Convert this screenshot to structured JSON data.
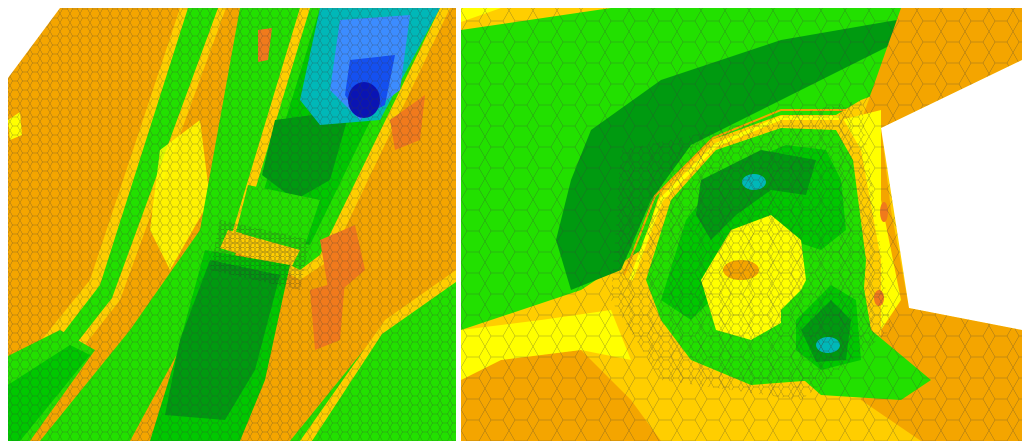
{
  "figure": {
    "colors": {
      "background": "#ffffff",
      "band_orange": "#F4A500",
      "band_dark_orange": "#F07A1C",
      "band_yellow_orange": "#FFCE00",
      "band_yellow": "#FFFF00",
      "band_light_green": "#22E000",
      "band_green": "#00C800",
      "band_dark_green": "#009A10",
      "band_teal": "#00B8B8",
      "band_light_blue": "#3C8CFF",
      "band_blue": "#1450F0",
      "band_dark_blue": "#0A14B4",
      "mesh_lines": "#3a3a3a"
    },
    "panels": [
      {
        "name": "left-contour-panel",
        "content": "mesh-contour-map"
      },
      {
        "name": "right-contour-panel",
        "content": "mesh-contour-map"
      }
    ]
  }
}
